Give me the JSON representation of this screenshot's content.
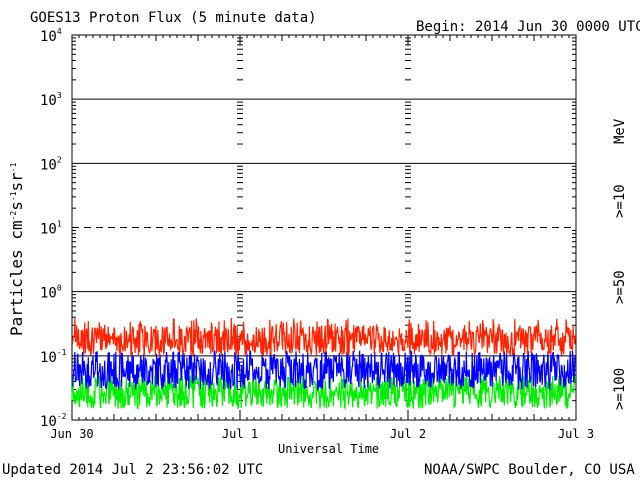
{
  "chart_data": {
    "type": "line",
    "title": "GOES13 Proton Flux (5 minute data)",
    "begin_label": "Begin: 2014 Jun 30 0000 UTC",
    "ylabel": "Particles cm-2s-1sr-1",
    "xlabel": "Universal Time",
    "y_scale": "log",
    "ylim": [
      0.01,
      10000
    ],
    "y_ticks": [
      {
        "value": 0.01,
        "base": "10",
        "exp": "-2"
      },
      {
        "value": 0.1,
        "base": "10",
        "exp": "-1"
      },
      {
        "value": 1,
        "base": "10",
        "exp": "0"
      },
      {
        "value": 10,
        "base": "10",
        "exp": "1"
      },
      {
        "value": 100,
        "base": "10",
        "exp": "2"
      },
      {
        "value": 1000,
        "base": "10",
        "exp": "3"
      },
      {
        "value": 10000,
        "base": "10",
        "exp": "4"
      }
    ],
    "x_ticks": [
      "Jun 30",
      "Jul 1",
      "Jul 2",
      "Jul 3"
    ],
    "xlim_days": [
      0,
      3
    ],
    "dashed_threshold": 10,
    "solid_reference": [
      0.1,
      1,
      100,
      1000
    ],
    "grid": true,
    "series": [
      {
        "name": ">=10",
        "color": "#ff2200",
        "typical_range": [
          0.1,
          0.3
        ]
      },
      {
        "name": ">=50",
        "color": "#0000ff",
        "typical_range": [
          0.03,
          0.12
        ]
      },
      {
        "name": ">=100",
        "color": "#00ee00",
        "typical_range": [
          0.015,
          0.05
        ]
      }
    ],
    "legend_unit": "MeV",
    "legend_position": "right"
  },
  "footer": {
    "updated": "Updated 2014 Jul  2 23:56:02 UTC",
    "source": "NOAA/SWPC Boulder, CO USA"
  },
  "colors": {
    "red": "#ff2200",
    "blue": "#0000ff",
    "green": "#00ee00"
  }
}
